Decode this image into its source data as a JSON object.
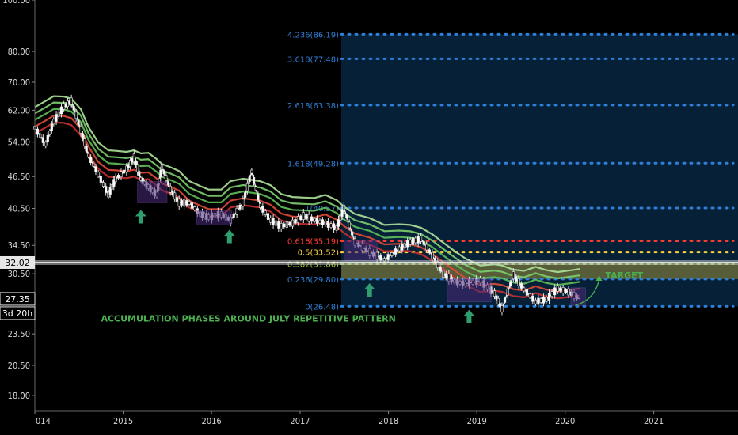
{
  "chart_data": {
    "type": "line",
    "title": "",
    "y_scale": "log",
    "ylim": [
      16.8,
      100
    ],
    "xlim": [
      "2014-01-01",
      "2021-12-15"
    ],
    "y_ticks": [
      "100.00",
      "80.00",
      "70.00",
      "62.00",
      "54.00",
      "46.50",
      "40.50",
      "34.50",
      "30.50",
      "23.50",
      "20.50",
      "18.00"
    ],
    "x_ticks": [
      {
        "label": "014",
        "date": "2014-01-01"
      },
      {
        "label": "2015",
        "date": "2015-01-01"
      },
      {
        "label": "2016",
        "date": "2016-01-01"
      },
      {
        "label": "2017",
        "date": "2017-01-01"
      },
      {
        "label": "2018",
        "date": "2018-01-01"
      },
      {
        "label": "2019",
        "date": "2019-01-01"
      },
      {
        "label": "2020",
        "date": "2020-01-01"
      },
      {
        "label": "2021",
        "date": "2021-01-01"
      }
    ],
    "price_marker": {
      "price": 32.02,
      "label": "32.02",
      "color": "#ffffff"
    },
    "last_price": {
      "price": 27.35,
      "label": "27.35",
      "countdown": "3d 20h"
    },
    "price_path": [
      [
        "2014-01-01",
        57.5
      ],
      [
        "2014-02-15",
        53.5
      ],
      [
        "2014-03-20",
        59
      ],
      [
        "2014-05-01",
        63
      ],
      [
        "2014-06-01",
        64.5
      ],
      [
        "2014-07-10",
        57
      ],
      [
        "2014-08-10",
        51
      ],
      [
        "2014-09-20",
        47
      ],
      [
        "2014-11-01",
        43
      ],
      [
        "2014-12-01",
        46
      ],
      [
        "2015-01-15",
        48
      ],
      [
        "2015-02-15",
        50.5
      ],
      [
        "2015-03-15",
        46
      ],
      [
        "2015-04-15",
        44.5
      ],
      [
        "2015-05-20",
        43
      ],
      [
        "2015-06-10",
        48.5
      ],
      [
        "2015-07-15",
        44
      ],
      [
        "2015-08-20",
        41.5
      ],
      [
        "2015-10-01",
        41.5
      ],
      [
        "2015-11-15",
        39.5
      ],
      [
        "2015-12-20",
        39
      ],
      [
        "2016-02-10",
        39.5
      ],
      [
        "2016-03-20",
        38.5
      ],
      [
        "2016-05-10",
        41.5
      ],
      [
        "2016-06-15",
        47.5
      ],
      [
        "2016-07-20",
        41
      ],
      [
        "2016-09-01",
        38.5
      ],
      [
        "2016-10-15",
        37.5
      ],
      [
        "2016-12-01",
        38
      ],
      [
        "2017-01-15",
        39.2
      ],
      [
        "2017-03-01",
        38.5
      ],
      [
        "2017-04-15",
        38
      ],
      [
        "2017-06-01",
        37.2
      ],
      [
        "2017-07-01",
        40.6
      ],
      [
        "2017-08-15",
        35
      ],
      [
        "2017-10-15",
        33.5
      ],
      [
        "2017-12-15",
        32.4
      ],
      [
        "2018-02-15",
        34
      ],
      [
        "2018-04-01",
        35
      ],
      [
        "2018-05-15",
        35.5
      ],
      [
        "2018-07-01",
        33
      ],
      [
        "2018-08-15",
        30.5
      ],
      [
        "2018-10-01",
        29.5
      ],
      [
        "2018-11-15",
        29.2
      ],
      [
        "2019-01-15",
        29.6
      ],
      [
        "2019-03-15",
        28
      ],
      [
        "2019-04-15",
        26.2
      ],
      [
        "2019-06-01",
        30.3
      ],
      [
        "2019-07-15",
        28.5
      ],
      [
        "2019-09-01",
        27
      ],
      [
        "2019-10-15",
        27.3
      ],
      [
        "2019-12-01",
        28.6
      ],
      [
        "2020-01-15",
        28.2
      ],
      [
        "2020-03-01",
        27.35
      ]
    ],
    "ribbons": [
      {
        "color": "#5fbf57",
        "offset": 1.05
      },
      {
        "color": "#7ccf6e",
        "offset": 1.08
      },
      {
        "color": "#aee39a",
        "offset": 1.11
      },
      {
        "color": "#e04a3a",
        "offset": 1.02
      },
      {
        "color": "#c83030",
        "offset": 0.99
      }
    ],
    "fib_levels": [
      {
        "label": "4.236(86.19)",
        "price": 86.19,
        "color": "#2f7fd6"
      },
      {
        "label": "3.618(77.48)",
        "price": 77.48,
        "color": "#2f7fd6"
      },
      {
        "label": "2.618(63.38)",
        "price": 63.38,
        "color": "#2f7fd6"
      },
      {
        "label": "1.618(49.28)",
        "price": 49.28,
        "color": "#2f7fd6"
      },
      {
        "label": "1(40.57)",
        "price": 40.57,
        "color": "#2f7fd6"
      },
      {
        "label": "0.618(35.19)",
        "price": 35.19,
        "color": "#ff3b30"
      },
      {
        "label": "0.5(33.52)",
        "price": 33.52,
        "color": "#ffd23f"
      },
      {
        "label": "0.382(31.86)",
        "price": 31.86,
        "color": "#9ccf3a"
      },
      {
        "label": "0.236(29.80)",
        "price": 29.8,
        "color": "#2f7fd6"
      },
      {
        "label": "0(26.48)",
        "price": 26.48,
        "color": "#2f7fd6"
      }
    ],
    "fib_start_date": "2017-06-20",
    "target_zone": {
      "from_date": "2017-06-20",
      "price_low": 29.8,
      "price_high": 31.86
    },
    "accumulation_boxes": [
      {
        "from": "2015-03-01",
        "to": "2015-07-01",
        "low": 41.5,
        "high": 45.5
      },
      {
        "from": "2015-11-01",
        "to": "2016-03-25",
        "low": 37.7,
        "high": 40.2
      },
      {
        "from": "2017-07-01",
        "to": "2017-11-15",
        "low": 32.3,
        "high": 35.3
      },
      {
        "from": "2018-09-01",
        "to": "2019-03-01",
        "low": 27.0,
        "high": 29.8
      },
      {
        "from": "2020-01-25",
        "to": "2020-03-25",
        "low": 26.6,
        "high": 28.7
      }
    ],
    "arrows": [
      {
        "date": "2015-03-15",
        "price": 39.0
      },
      {
        "date": "2016-03-15",
        "price": 35.8
      },
      {
        "date": "2017-10-15",
        "price": 28.4
      },
      {
        "date": "2018-11-30",
        "price": 25.3
      }
    ],
    "annotations": {
      "accumulation": {
        "text": "ACCUMULATION PHASES AROUND JULY REPETITIVE PATTERN",
        "date": "2014-10-01",
        "price": 24.8,
        "color": "#4caf50"
      },
      "target": {
        "text": "TARGET",
        "date": "2020-06-15",
        "price": 29.9,
        "color": "#4caf50"
      }
    }
  }
}
